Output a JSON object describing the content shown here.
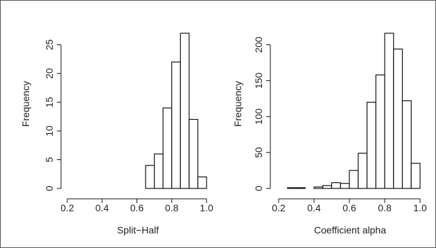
{
  "chart_data": [
    {
      "type": "bar",
      "xlabel": "Split−Half",
      "ylabel": "Frequency",
      "bin_edges": [
        0.65,
        0.7,
        0.75,
        0.8,
        0.85,
        0.9,
        0.95,
        1.0
      ],
      "values": [
        4,
        6,
        14,
        22,
        27,
        12,
        2
      ],
      "xlim": [
        0.2,
        1.0
      ],
      "ylim": [
        0,
        27
      ],
      "x_ticks": [
        "0.2",
        "0.4",
        "0.6",
        "0.8",
        "1.0"
      ],
      "y_ticks": [
        "0",
        "5",
        "10",
        "15",
        "20",
        "25"
      ],
      "grid": false
    },
    {
      "type": "bar",
      "xlabel": "Coefficient alpha",
      "ylabel": "Frequency",
      "bin_edges": [
        0.25,
        0.3,
        0.35,
        0.4,
        0.45,
        0.5,
        0.55,
        0.6,
        0.65,
        0.7,
        0.75,
        0.8,
        0.85,
        0.9,
        0.95,
        1.0
      ],
      "values": [
        1,
        1,
        0,
        2,
        4,
        8,
        7,
        25,
        49,
        120,
        158,
        216,
        194,
        122,
        35
      ],
      "xlim": [
        0.2,
        1.0
      ],
      "ylim": [
        0,
        216
      ],
      "x_ticks": [
        "0.2",
        "0.4",
        "0.6",
        "0.8",
        "1.0"
      ],
      "y_ticks": [
        "0",
        "50",
        "100",
        "150",
        "200"
      ],
      "grid": false
    }
  ]
}
